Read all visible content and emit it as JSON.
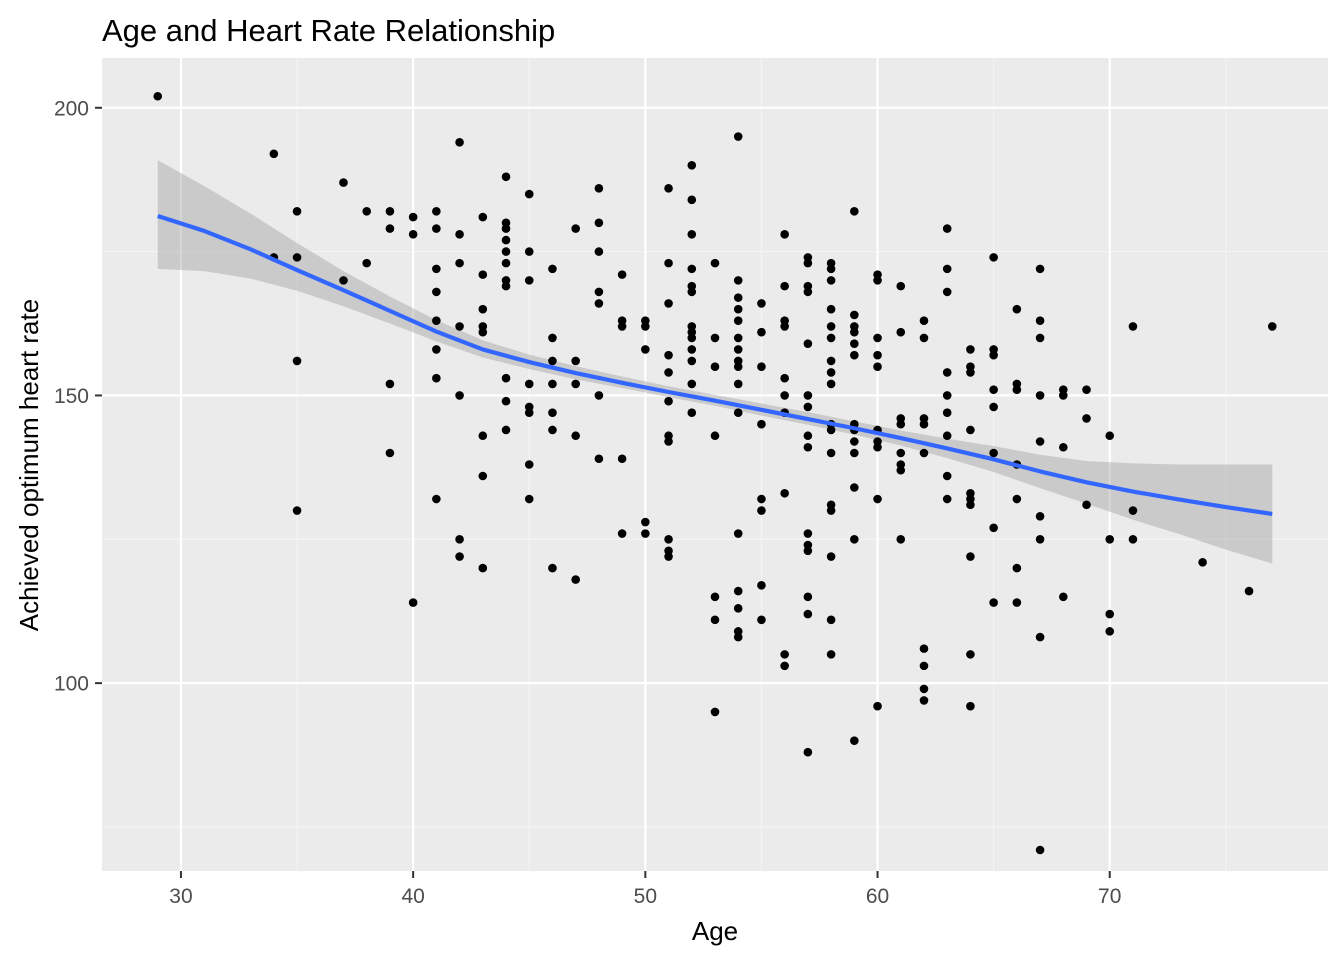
{
  "chart_data": {
    "type": "scatter",
    "title": "Age and Heart Rate Relationship",
    "xlabel": "Age",
    "ylabel": "Achieved optimum heart rate",
    "xlim": [
      26.6,
      79.4
    ],
    "ylim": [
      67.35,
      208.65
    ],
    "x_ticks": [
      30,
      40,
      50,
      60,
      70
    ],
    "y_ticks": [
      100,
      150,
      200
    ],
    "grid": true,
    "colors": {
      "panel_background": "#ebebeb",
      "grid_major": "#ffffff",
      "grid_minor": "#f5f5f5",
      "points": "#000000",
      "smooth_line": "#3366ff",
      "ribbon": "#999999"
    },
    "points": [
      [
        29,
        202
      ],
      [
        34,
        192
      ],
      [
        34,
        174
      ],
      [
        35,
        182
      ],
      [
        35,
        174
      ],
      [
        35,
        156
      ],
      [
        35,
        130
      ],
      [
        37,
        187
      ],
      [
        37,
        170
      ],
      [
        38,
        182
      ],
      [
        38,
        173
      ],
      [
        39,
        182
      ],
      [
        39,
        179
      ],
      [
        39,
        152
      ],
      [
        39,
        140
      ],
      [
        40,
        181
      ],
      [
        40,
        178
      ],
      [
        40,
        114
      ],
      [
        41,
        182
      ],
      [
        41,
        179
      ],
      [
        41,
        172
      ],
      [
        41,
        168
      ],
      [
        41,
        163
      ],
      [
        41,
        158
      ],
      [
        41,
        153
      ],
      [
        41,
        132
      ],
      [
        42,
        194
      ],
      [
        42,
        178
      ],
      [
        42,
        173
      ],
      [
        42,
        162
      ],
      [
        42,
        150
      ],
      [
        42,
        125
      ],
      [
        42,
        122
      ],
      [
        43,
        181
      ],
      [
        43,
        171
      ],
      [
        43,
        165
      ],
      [
        43,
        162
      ],
      [
        43,
        161
      ],
      [
        43,
        143
      ],
      [
        43,
        136
      ],
      [
        43,
        120
      ],
      [
        44,
        188
      ],
      [
        44,
        180
      ],
      [
        44,
        179
      ],
      [
        44,
        177
      ],
      [
        44,
        175
      ],
      [
        44,
        173
      ],
      [
        44,
        170
      ],
      [
        44,
        169
      ],
      [
        44,
        153
      ],
      [
        44,
        149
      ],
      [
        44,
        144
      ],
      [
        45,
        185
      ],
      [
        45,
        175
      ],
      [
        45,
        170
      ],
      [
        45,
        152
      ],
      [
        45,
        148
      ],
      [
        45,
        147
      ],
      [
        45,
        138
      ],
      [
        45,
        132
      ],
      [
        46,
        172
      ],
      [
        46,
        160
      ],
      [
        46,
        156
      ],
      [
        46,
        152
      ],
      [
        46,
        147
      ],
      [
        46,
        144
      ],
      [
        46,
        120
      ],
      [
        47,
        179
      ],
      [
        47,
        156
      ],
      [
        47,
        152
      ],
      [
        47,
        143
      ],
      [
        47,
        118
      ],
      [
        48,
        186
      ],
      [
        48,
        180
      ],
      [
        48,
        175
      ],
      [
        48,
        168
      ],
      [
        48,
        166
      ],
      [
        48,
        150
      ],
      [
        48,
        139
      ],
      [
        49,
        171
      ],
      [
        49,
        163
      ],
      [
        49,
        162
      ],
      [
        49,
        139
      ],
      [
        49,
        126
      ],
      [
        50,
        163
      ],
      [
        50,
        162
      ],
      [
        50,
        158
      ],
      [
        50,
        128
      ],
      [
        50,
        126
      ],
      [
        51,
        186
      ],
      [
        51,
        173
      ],
      [
        51,
        166
      ],
      [
        51,
        157
      ],
      [
        51,
        154
      ],
      [
        51,
        149
      ],
      [
        51,
        143
      ],
      [
        51,
        142
      ],
      [
        51,
        125
      ],
      [
        51,
        123
      ],
      [
        51,
        122
      ],
      [
        52,
        190
      ],
      [
        52,
        184
      ],
      [
        52,
        178
      ],
      [
        52,
        172
      ],
      [
        52,
        169
      ],
      [
        52,
        168
      ],
      [
        52,
        162
      ],
      [
        52,
        161
      ],
      [
        52,
        160
      ],
      [
        52,
        158
      ],
      [
        52,
        156
      ],
      [
        52,
        152
      ],
      [
        52,
        147
      ],
      [
        53,
        173
      ],
      [
        53,
        160
      ],
      [
        53,
        155
      ],
      [
        53,
        143
      ],
      [
        53,
        115
      ],
      [
        53,
        111
      ],
      [
        53,
        95
      ],
      [
        54,
        195
      ],
      [
        54,
        170
      ],
      [
        54,
        167
      ],
      [
        54,
        165
      ],
      [
        54,
        163
      ],
      [
        54,
        160
      ],
      [
        54,
        158
      ],
      [
        54,
        156
      ],
      [
        54,
        155
      ],
      [
        54,
        152
      ],
      [
        54,
        147
      ],
      [
        54,
        126
      ],
      [
        54,
        116
      ],
      [
        54,
        113
      ],
      [
        54,
        109
      ],
      [
        54,
        108
      ],
      [
        55,
        166
      ],
      [
        55,
        161
      ],
      [
        55,
        155
      ],
      [
        55,
        145
      ],
      [
        55,
        132
      ],
      [
        55,
        130
      ],
      [
        55,
        117
      ],
      [
        55,
        111
      ],
      [
        56,
        178
      ],
      [
        56,
        169
      ],
      [
        56,
        163
      ],
      [
        56,
        162
      ],
      [
        56,
        153
      ],
      [
        56,
        150
      ],
      [
        56,
        147
      ],
      [
        56,
        133
      ],
      [
        56,
        105
      ],
      [
        56,
        103
      ],
      [
        57,
        174
      ],
      [
        57,
        173
      ],
      [
        57,
        169
      ],
      [
        57,
        168
      ],
      [
        57,
        159
      ],
      [
        57,
        150
      ],
      [
        57,
        148
      ],
      [
        57,
        143
      ],
      [
        57,
        141
      ],
      [
        57,
        126
      ],
      [
        57,
        124
      ],
      [
        57,
        123
      ],
      [
        57,
        115
      ],
      [
        57,
        112
      ],
      [
        57,
        88
      ],
      [
        58,
        173
      ],
      [
        58,
        172
      ],
      [
        58,
        170
      ],
      [
        58,
        165
      ],
      [
        58,
        162
      ],
      [
        58,
        160
      ],
      [
        58,
        156
      ],
      [
        58,
        154
      ],
      [
        58,
        152
      ],
      [
        58,
        145
      ],
      [
        58,
        144
      ],
      [
        58,
        140
      ],
      [
        58,
        131
      ],
      [
        58,
        130
      ],
      [
        58,
        122
      ],
      [
        58,
        111
      ],
      [
        58,
        105
      ],
      [
        59,
        182
      ],
      [
        59,
        164
      ],
      [
        59,
        162
      ],
      [
        59,
        161
      ],
      [
        59,
        159
      ],
      [
        59,
        157
      ],
      [
        59,
        145
      ],
      [
        59,
        144
      ],
      [
        59,
        142
      ],
      [
        59,
        140
      ],
      [
        59,
        134
      ],
      [
        59,
        125
      ],
      [
        59,
        90
      ],
      [
        60,
        171
      ],
      [
        60,
        170
      ],
      [
        60,
        160
      ],
      [
        60,
        157
      ],
      [
        60,
        155
      ],
      [
        60,
        144
      ],
      [
        60,
        142
      ],
      [
        60,
        141
      ],
      [
        60,
        132
      ],
      [
        60,
        96
      ],
      [
        61,
        169
      ],
      [
        61,
        161
      ],
      [
        61,
        146
      ],
      [
        61,
        145
      ],
      [
        61,
        140
      ],
      [
        61,
        138
      ],
      [
        61,
        137
      ],
      [
        61,
        125
      ],
      [
        62,
        163
      ],
      [
        62,
        160
      ],
      [
        62,
        146
      ],
      [
        62,
        145
      ],
      [
        62,
        140
      ],
      [
        62,
        106
      ],
      [
        62,
        103
      ],
      [
        62,
        99
      ],
      [
        62,
        97
      ],
      [
        63,
        179
      ],
      [
        63,
        172
      ],
      [
        63,
        168
      ],
      [
        63,
        154
      ],
      [
        63,
        150
      ],
      [
        63,
        147
      ],
      [
        63,
        143
      ],
      [
        63,
        136
      ],
      [
        63,
        132
      ],
      [
        64,
        158
      ],
      [
        64,
        155
      ],
      [
        64,
        154
      ],
      [
        64,
        144
      ],
      [
        64,
        133
      ],
      [
        64,
        132
      ],
      [
        64,
        131
      ],
      [
        64,
        122
      ],
      [
        64,
        105
      ],
      [
        64,
        96
      ],
      [
        65,
        174
      ],
      [
        65,
        158
      ],
      [
        65,
        157
      ],
      [
        65,
        151
      ],
      [
        65,
        148
      ],
      [
        65,
        140
      ],
      [
        65,
        127
      ],
      [
        65,
        114
      ],
      [
        66,
        165
      ],
      [
        66,
        152
      ],
      [
        66,
        151
      ],
      [
        66,
        138
      ],
      [
        66,
        132
      ],
      [
        66,
        120
      ],
      [
        66,
        114
      ],
      [
        67,
        172
      ],
      [
        67,
        163
      ],
      [
        67,
        160
      ],
      [
        67,
        150
      ],
      [
        67,
        142
      ],
      [
        67,
        129
      ],
      [
        67,
        125
      ],
      [
        67,
        108
      ],
      [
        67,
        71
      ],
      [
        68,
        151
      ],
      [
        68,
        150
      ],
      [
        68,
        141
      ],
      [
        68,
        115
      ],
      [
        69,
        151
      ],
      [
        69,
        146
      ],
      [
        69,
        131
      ],
      [
        70,
        143
      ],
      [
        70,
        125
      ],
      [
        70,
        112
      ],
      [
        70,
        109
      ],
      [
        71,
        162
      ],
      [
        71,
        130
      ],
      [
        71,
        125
      ],
      [
        74,
        121
      ],
      [
        76,
        116
      ],
      [
        77,
        162
      ]
    ],
    "smooth": {
      "x": [
        29,
        31,
        33,
        35,
        37,
        39,
        41,
        43,
        45,
        47,
        49,
        51,
        53,
        55,
        57,
        59,
        61,
        63,
        65,
        67,
        69,
        71,
        73,
        75,
        77
      ],
      "y": [
        181.2,
        178.6,
        175.4,
        171.8,
        168.3,
        164.7,
        161.1,
        158.0,
        155.8,
        153.9,
        152.2,
        150.6,
        149.1,
        147.5,
        145.9,
        144.3,
        142.6,
        140.8,
        138.9,
        136.8,
        134.9,
        133.3,
        131.9,
        130.6,
        129.4
      ],
      "ymin": [
        172.0,
        171.6,
        170.3,
        168.2,
        165.5,
        162.5,
        159.4,
        156.6,
        154.6,
        152.8,
        151.3,
        149.7,
        148.2,
        146.5,
        144.9,
        143.2,
        141.3,
        139.1,
        136.7,
        133.9,
        131.2,
        128.4,
        125.9,
        123.2,
        120.8
      ],
      "ymax": [
        190.9,
        186.4,
        181.6,
        176.5,
        171.6,
        167.2,
        163.1,
        159.6,
        157.1,
        155.1,
        153.3,
        151.6,
        150.1,
        148.6,
        147.1,
        145.5,
        143.9,
        142.5,
        141.2,
        139.7,
        138.6,
        138.2,
        138.0,
        138.0,
        138.0
      ]
    }
  }
}
